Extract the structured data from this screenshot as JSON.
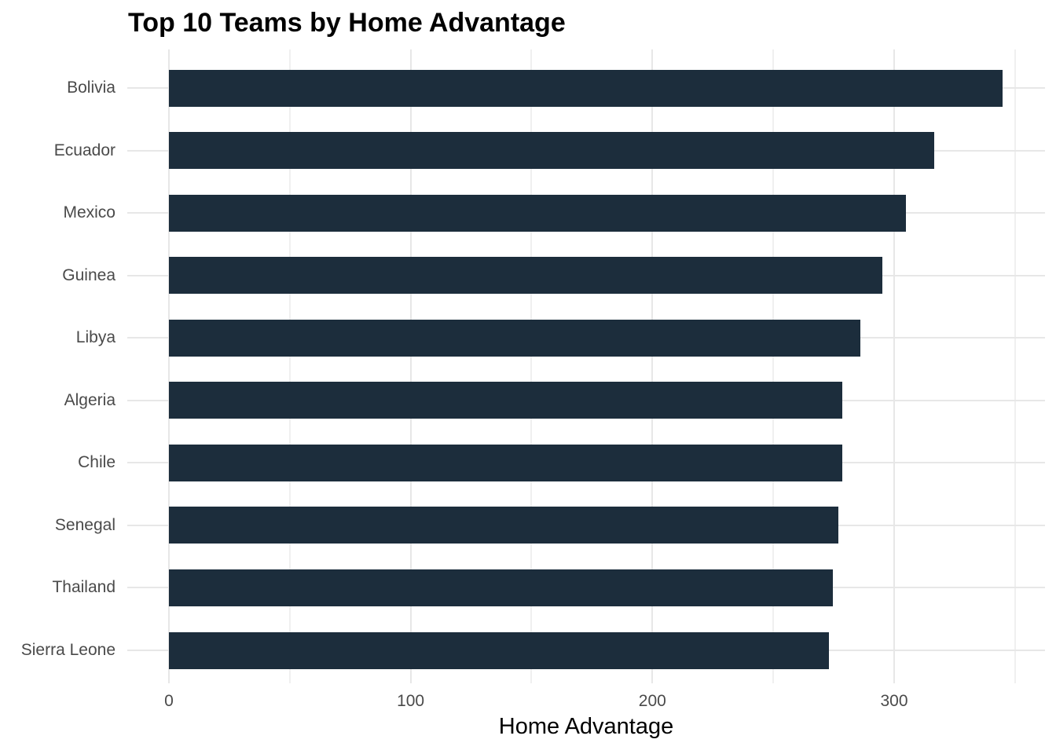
{
  "chart_data": {
    "type": "bar",
    "orientation": "horizontal",
    "title": "Top 10 Teams by Home Advantage",
    "xlabel": "Home Advantage",
    "ylabel": "",
    "categories": [
      "Bolivia",
      "Ecuador",
      "Mexico",
      "Guinea",
      "Libya",
      "Algeria",
      "Chile",
      "Senegal",
      "Thailand",
      "Sierra Leone"
    ],
    "values": [
      345,
      316.5,
      305,
      295,
      286,
      278.6,
      278.4,
      277,
      274.5,
      273
    ],
    "x_major_ticks": [
      0,
      100,
      200,
      300
    ],
    "x_minor_ticks": [
      50,
      150,
      250,
      350
    ],
    "xlim": [
      -17.2,
      362.4
    ],
    "grid": "major-and-minor",
    "legend": "none",
    "colors": {
      "bar": "#1c2d3c",
      "grid_major": "#e7e7e7",
      "grid_minor": "#f0f0f0",
      "tick_text": "#4a4a4a",
      "title_text": "#000000",
      "background": "#ffffff"
    }
  }
}
